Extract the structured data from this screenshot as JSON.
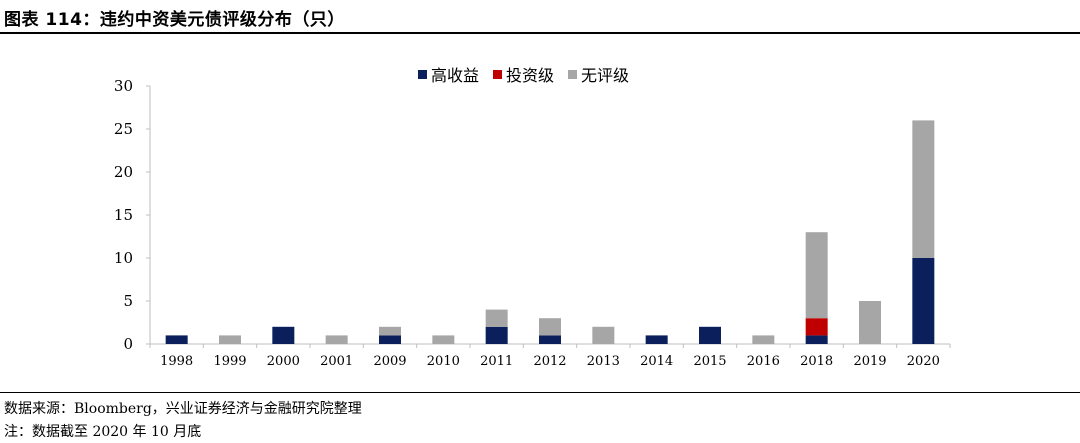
{
  "header": {
    "title": "图表 114：违约中资美元债评级分布（只）"
  },
  "footer": {
    "source": "数据来源：Bloomberg，兴业证券经济与金融研究院整理",
    "note": "注：数据截至 2020 年 10 月底"
  },
  "colors": {
    "high_yield": "#0a1f5c",
    "investment_grade": "#c00000",
    "unrated": "#a6a6a6"
  },
  "chart_data": {
    "type": "bar",
    "stacked": true,
    "categories": [
      "1998",
      "1999",
      "2000",
      "2001",
      "2009",
      "2010",
      "2011",
      "2012",
      "2013",
      "2014",
      "2015",
      "2016",
      "2018",
      "2019",
      "2020"
    ],
    "series": [
      {
        "name": "高收益",
        "values": [
          1,
          0,
          2,
          0,
          1,
          0,
          2,
          1,
          0,
          1,
          2,
          0,
          1,
          0,
          10
        ]
      },
      {
        "name": "投资级",
        "values": [
          0,
          0,
          0,
          0,
          0,
          0,
          0,
          0,
          0,
          0,
          0,
          0,
          2,
          0,
          0
        ]
      },
      {
        "name": "无评级",
        "values": [
          0,
          1,
          0,
          1,
          1,
          1,
          2,
          2,
          2,
          0,
          0,
          1,
          10,
          5,
          16
        ]
      }
    ],
    "ylim": [
      0,
      30
    ],
    "yticks": [
      0,
      5,
      10,
      15,
      20,
      25,
      30
    ],
    "legend_position": "top-center",
    "grid": false
  }
}
